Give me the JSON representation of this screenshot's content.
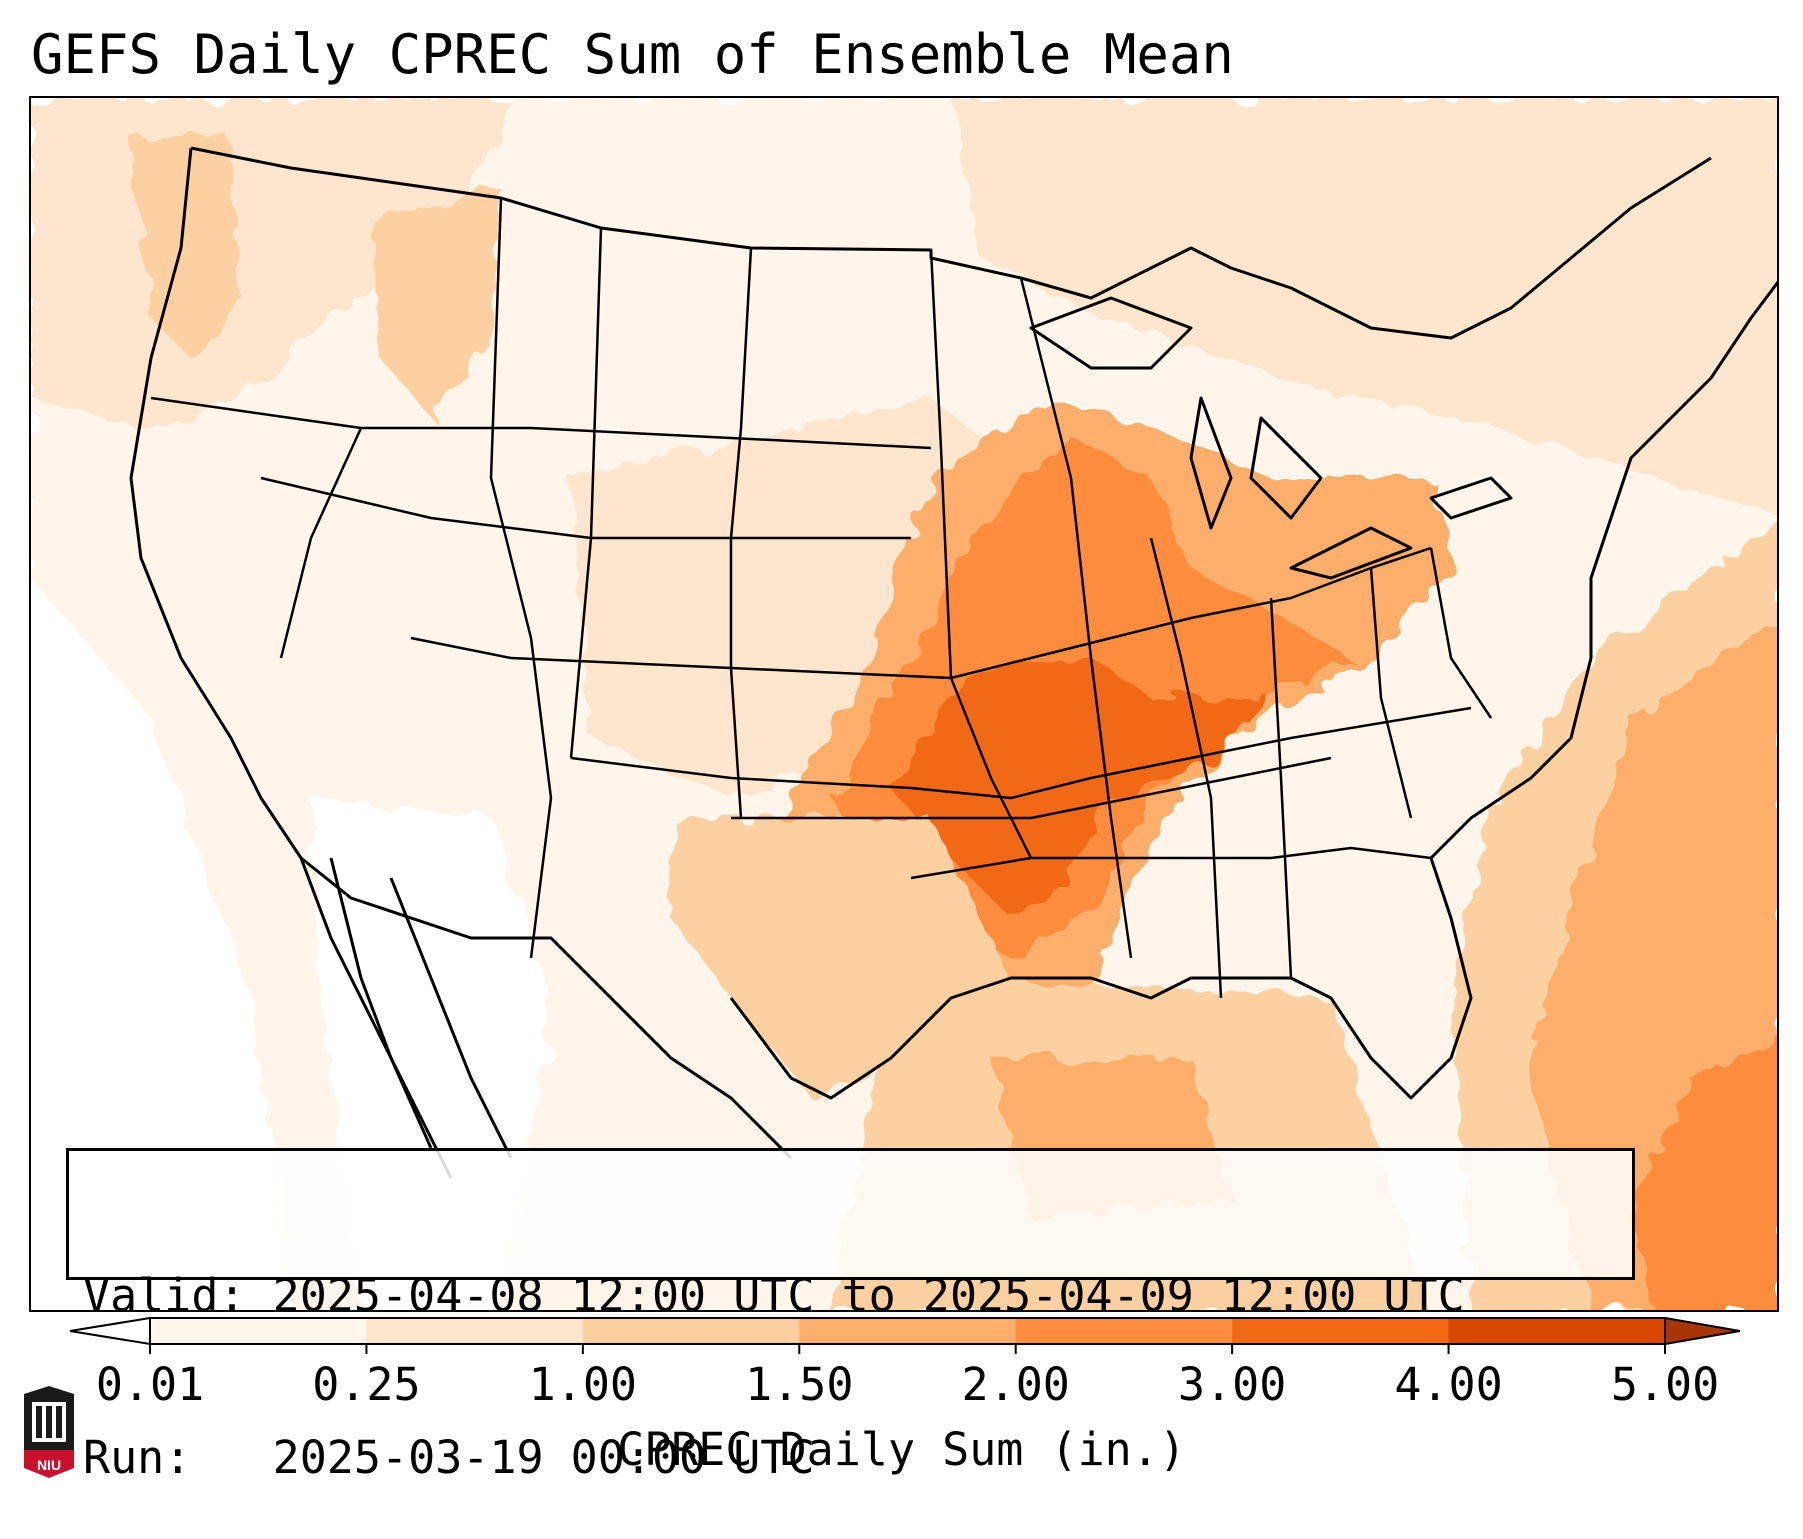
{
  "title": "GEFS Daily CPREC Sum of Ensemble Mean",
  "info": {
    "valid": "Valid: 2025-04-08 12:00 UTC to 2025-04-09 12:00 UTC",
    "run": "Run:   2025-03-19 00:00 UTC"
  },
  "colorbar": {
    "label": "CPREC Daily Sum (in.)",
    "ticks": [
      "0.01",
      "0.25",
      "1.00",
      "1.50",
      "2.00",
      "3.00",
      "4.00",
      "5.00"
    ],
    "colors": [
      "#fff5eb",
      "#fee6ce",
      "#fdd0a2",
      "#fdae6b",
      "#fd8d3c",
      "#f16913",
      "#d94801",
      "#a63603"
    ],
    "extend": "both"
  },
  "map": {
    "region": "CONUS",
    "overlays": [
      "state-borders",
      "coastlines",
      "international-borders"
    ],
    "levels": [
      {
        "level": 1,
        "meaning": "0.01-0.25 in."
      },
      {
        "level": 2,
        "meaning": "0.25-1.00 in."
      },
      {
        "level": 3,
        "meaning": "1.00-1.50 in."
      },
      {
        "level": 4,
        "meaning": "1.50-2.00 in."
      },
      {
        "level": 5,
        "meaning": "2.00-3.00 in."
      }
    ]
  },
  "logo": {
    "text": "NIU",
    "icon": "niu-tower-logo"
  }
}
